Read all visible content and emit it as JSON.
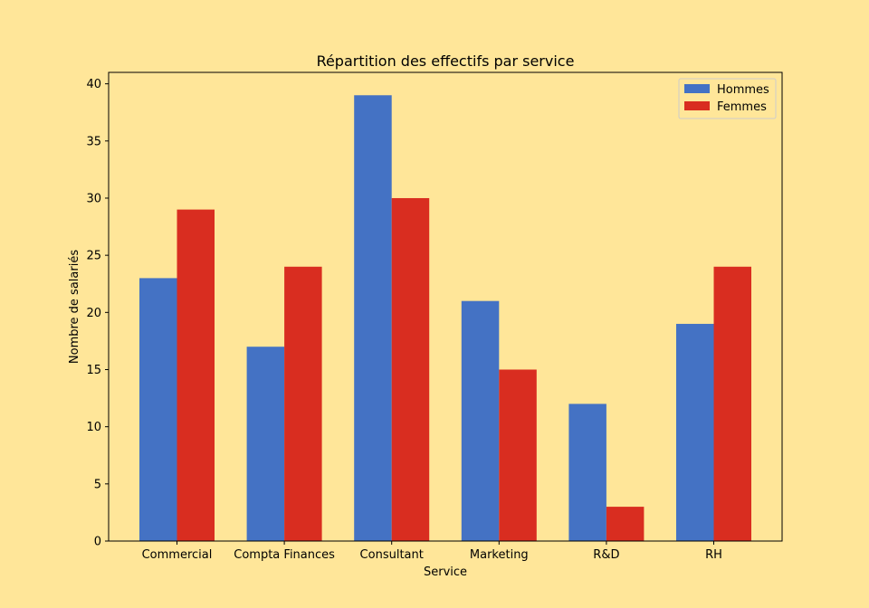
{
  "colors": {
    "background": "#ffe699",
    "hommes": "#4472c4",
    "femmes": "#d92d20"
  },
  "chart_data": {
    "type": "bar",
    "title": "Répartition des effectifs par service",
    "xlabel": "Service",
    "ylabel": "Nombre de salariés",
    "categories": [
      "Commercial",
      "Compta Finances",
      "Consultant",
      "Marketing",
      "R&D",
      "RH"
    ],
    "series": [
      {
        "name": "Hommes",
        "values": [
          23,
          17,
          39,
          21,
          12,
          19
        ]
      },
      {
        "name": "Femmes",
        "values": [
          29,
          24,
          30,
          15,
          3,
          24
        ]
      }
    ],
    "ylim": [
      0,
      41
    ],
    "yticks": [
      0,
      5,
      10,
      15,
      20,
      25,
      30,
      35,
      40
    ],
    "legend_position": "top-right",
    "grid": false
  }
}
